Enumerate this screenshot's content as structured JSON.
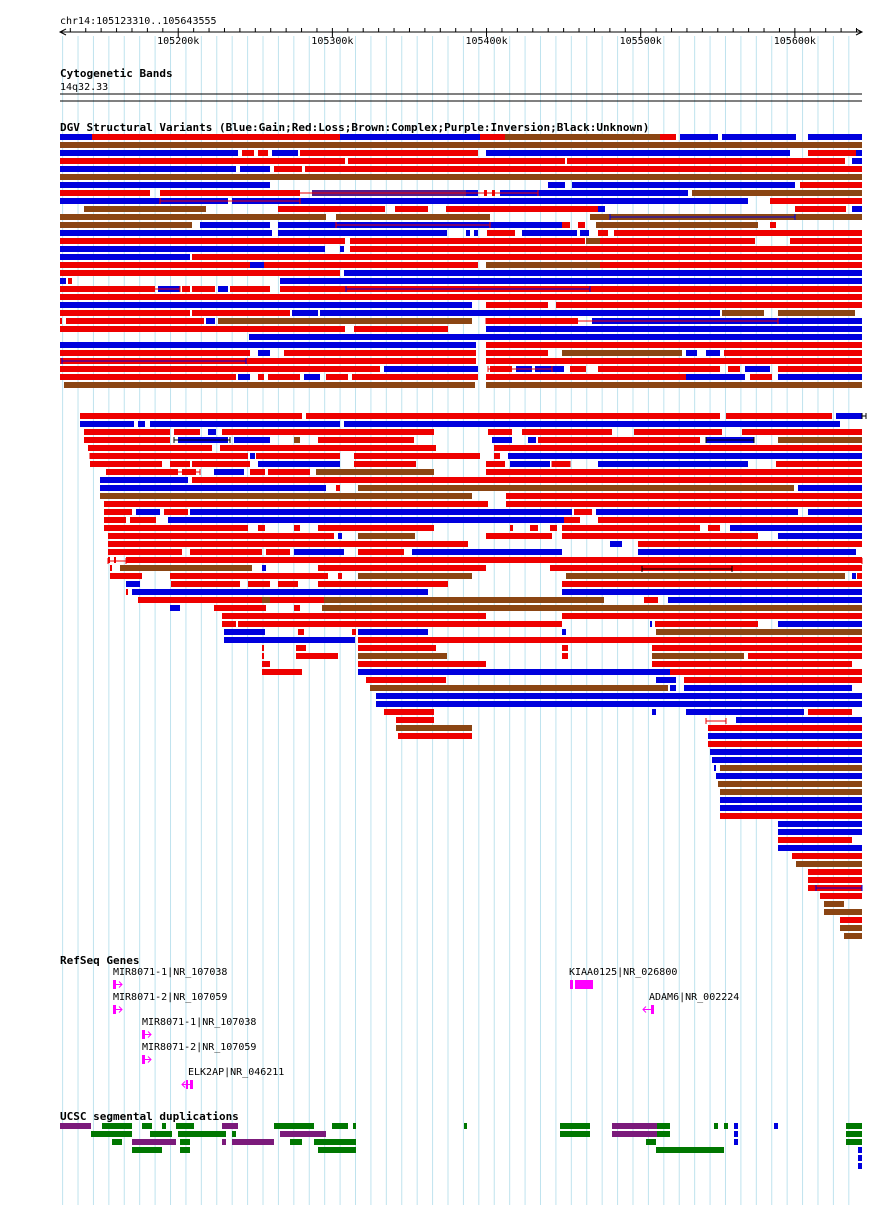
{
  "location": "chr14:105123310..105643555",
  "ruler": {
    "start": 105123310,
    "end": 105643555,
    "ticks": [
      {
        "pos": 105200000,
        "label": "105200k"
      },
      {
        "pos": 105300000,
        "label": "105300k"
      },
      {
        "pos": 105400000,
        "label": "105400k"
      },
      {
        "pos": 105500000,
        "label": "105500k"
      },
      {
        "pos": 105600000,
        "label": "105600k"
      }
    ]
  },
  "tracks": {
    "cytoband": {
      "title": "Cytogenetic Bands",
      "band": "14q32.33"
    },
    "dgv": {
      "title": "DGV Structural Variants (Blue:Gain;Red:Loss;Brown:Complex;Purple:Inversion;Black:Unknown)",
      "colors": {
        "gain": "#0000dd",
        "loss": "#ee0000",
        "complex": "#8b4513",
        "inversion": "#551a8b",
        "unknown": "#000000"
      }
    },
    "refseq": {
      "title": "RefSeq Genes",
      "color": "#ff00ff",
      "genes": [
        {
          "label": "MIR8071-1|NR_107038",
          "start": 105157000,
          "end": 105161000,
          "strand": "+"
        },
        {
          "label": "MIR8071-2|NR_107059",
          "start": 105157000,
          "end": 105161000,
          "strand": "+"
        },
        {
          "label": "MIR8071-1|NR_107038",
          "start": 105176000,
          "end": 105180000,
          "strand": "+"
        },
        {
          "label": "MIR8071-2|NR_107059",
          "start": 105176000,
          "end": 105180000,
          "strand": "+"
        },
        {
          "label": "ELK2AP|NR_046211",
          "start": 105203000,
          "end": 105208000,
          "strand": "-"
        },
        {
          "label": "KIAA0125|NR_026800",
          "start": 105455000,
          "end": 105470000,
          "strand": "+"
        },
        {
          "label": "ADAM6|NR_002224",
          "start": 105505000,
          "end": 105510000,
          "strand": "-"
        }
      ]
    },
    "segdups": {
      "title": "UCSC segmental duplications",
      "colors": {
        "green": "#007700",
        "purple": "#7b1a7b",
        "blue": "#0000cc"
      }
    }
  }
}
